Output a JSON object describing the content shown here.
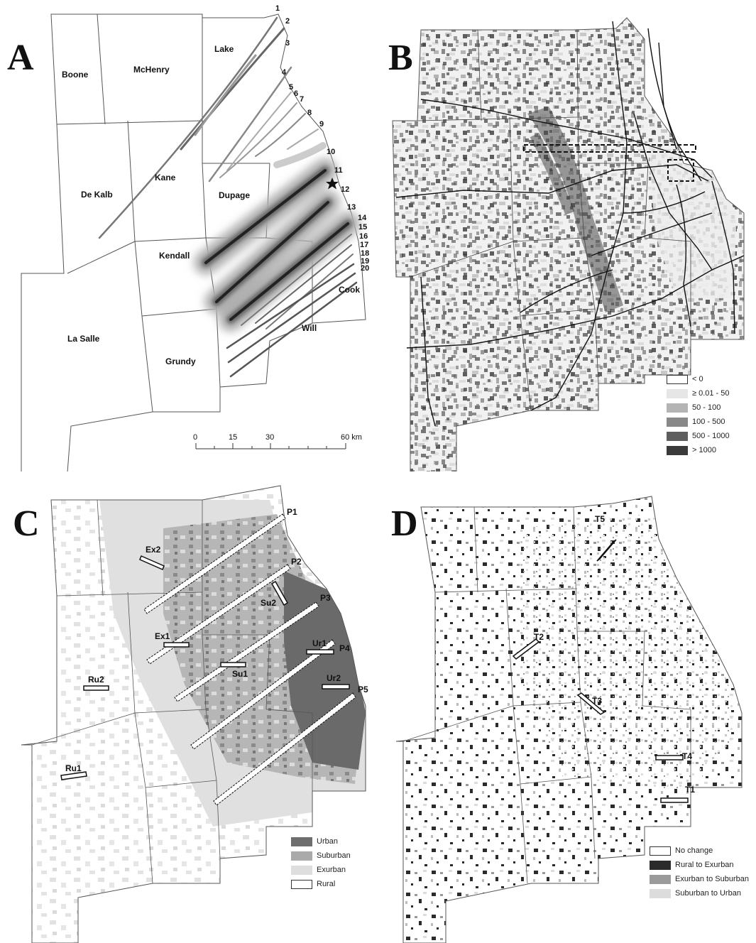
{
  "panel_a": {
    "label": "A",
    "counties": [
      "Boone",
      "McHenry",
      "Lake",
      "De Kalb",
      "Kane",
      "Dupage",
      "Kendall",
      "La Salle",
      "Grundy",
      "Cook",
      "Will"
    ],
    "transects": [
      "1",
      "2",
      "3",
      "4",
      "5",
      "6",
      "7",
      "8",
      "9",
      "10",
      "11",
      "12",
      "13",
      "14",
      "15",
      "16",
      "17",
      "18",
      "19",
      "20"
    ],
    "scale": {
      "ticks": [
        "0",
        "15",
        "30",
        "60 km"
      ]
    }
  },
  "panel_b": {
    "label": "B",
    "legend": [
      {
        "label": "< 0",
        "color": "#ffffff"
      },
      {
        "label": "≥ 0.01 - 50",
        "color": "#e6e6e6"
      },
      {
        "label": "50 - 100",
        "color": "#b4b4b4"
      },
      {
        "label": "100 - 500",
        "color": "#888888"
      },
      {
        "label": "500 - 1000",
        "color": "#5e5e5e"
      },
      {
        "label": "> 1000",
        "color": "#3a3a3a"
      }
    ]
  },
  "panel_c": {
    "label": "C",
    "transects": [
      "P1",
      "P2",
      "P3",
      "P4",
      "P5"
    ],
    "sites": [
      "Ex2",
      "Su2",
      "Ex1",
      "Ur1",
      "Su1",
      "Ru2",
      "Ur2",
      "Ru1"
    ],
    "legend": [
      {
        "label": "Urban",
        "color": "#6e6e6e"
      },
      {
        "label": "Suburban",
        "color": "#aaaaaa"
      },
      {
        "label": "Exurban",
        "color": "#dedede"
      },
      {
        "label": "Rural",
        "color": "#ffffff"
      }
    ]
  },
  "panel_d": {
    "label": "D",
    "sites": [
      "T5",
      "T2",
      "T3",
      "T4",
      "T1"
    ],
    "legend": [
      {
        "label": "No change",
        "color": "#ffffff"
      },
      {
        "label": "Rural to Exurban",
        "color": "#2b2b2b"
      },
      {
        "label": "Exurban to Suburban",
        "color": "#9a9a9a"
      },
      {
        "label": "Suburban to Urban",
        "color": "#dcdcdc"
      }
    ]
  }
}
